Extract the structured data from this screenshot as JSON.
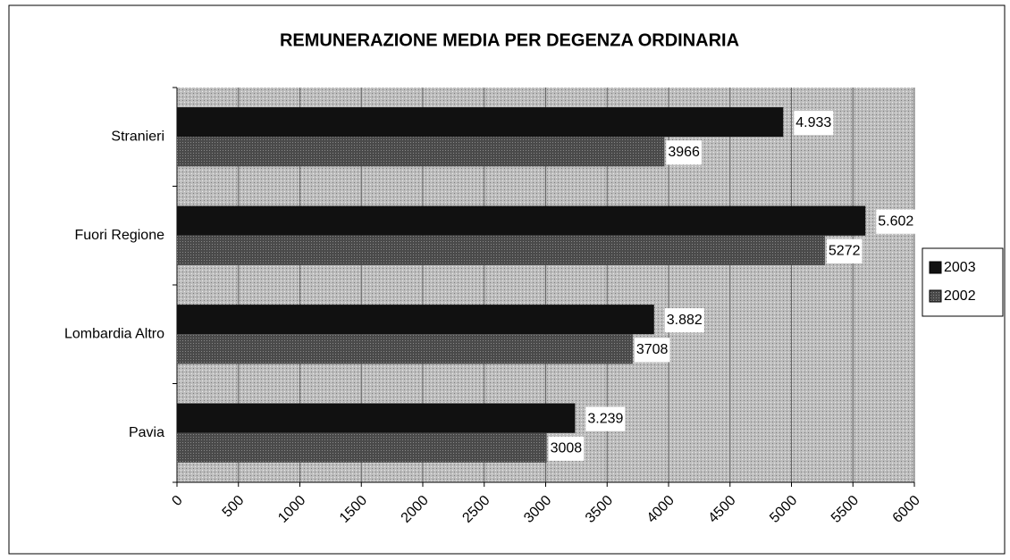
{
  "chart_data": {
    "type": "barh",
    "title": "REMUNERAZIONE MEDIA PER DEGENZA ORDINARIA",
    "categories": [
      "Stranieri",
      "Fuori Regione",
      "Lombardia Altro",
      "Pavia"
    ],
    "series": [
      {
        "name": "2003",
        "color": "#111111",
        "values": [
          4933,
          5602,
          3882,
          3239
        ],
        "value_labels": [
          "4.933",
          "5.602",
          "3.882",
          "3.239"
        ]
      },
      {
        "name": "2002",
        "color": "#4a4a4a",
        "values": [
          3966,
          5272,
          3708,
          3008
        ]
      }
    ],
    "xlim": [
      0,
      6000
    ],
    "xticks": [
      0,
      500,
      1000,
      1500,
      2000,
      2500,
      3000,
      3500,
      4000,
      4500,
      5000,
      5500,
      6000
    ],
    "grid": true,
    "legend": "right"
  }
}
